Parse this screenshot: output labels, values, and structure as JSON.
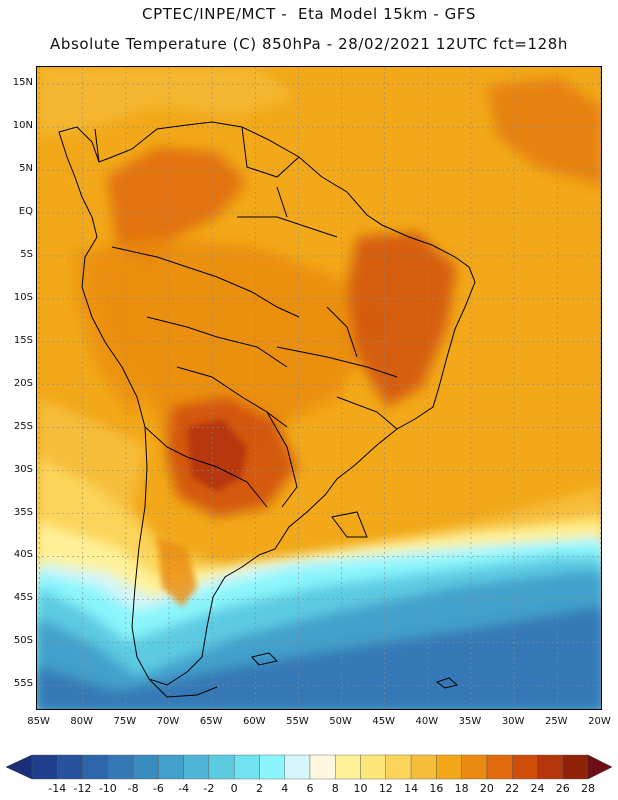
{
  "header": {
    "line1": "CPTEC/INPE/MCT -  Eta Model 15km - GFS",
    "line2": "Absolute Temperature (C) 850hPa - 28/02/2021 12UTC fct=128h"
  },
  "map": {
    "field": "Absolute Temperature (C) 850hPa",
    "lat_labels": [
      "15N",
      "10N",
      "5N",
      "EQ",
      "5S",
      "10S",
      "15S",
      "20S",
      "25S",
      "30S",
      "35S",
      "40S",
      "45S",
      "50S",
      "55S"
    ],
    "lon_labels": [
      "85W",
      "80W",
      "75W",
      "70W",
      "65W",
      "60W",
      "55W",
      "50W",
      "45W",
      "40W",
      "35W",
      "30W",
      "25W",
      "20W"
    ],
    "lat_range": [
      17,
      -58
    ],
    "lon_range": [
      -85.3,
      -19.7
    ]
  },
  "colorbar": {
    "labels": [
      "-14",
      "-12",
      "-10",
      "-8",
      "-6",
      "-4",
      "-2",
      "0",
      "2",
      "4",
      "6",
      "8",
      "10",
      "12",
      "14",
      "16",
      "18",
      "20",
      "22",
      "24",
      "26",
      "28"
    ],
    "colors": [
      "#1d3f8c",
      "#27529e",
      "#2e66ac",
      "#3478b6",
      "#3a8bc0",
      "#43a0ca",
      "#4fb6d6",
      "#5ccbe2",
      "#6fe3ef",
      "#8bf5fb",
      "#d5f6fb",
      "#fff8e0",
      "#fff19a",
      "#fde57a",
      "#fbd55a",
      "#f6bd3a",
      "#f2a818",
      "#ea8a10",
      "#e06a0c",
      "#cf4d0a",
      "#b5360a",
      "#8f2208"
    ],
    "low_arrow_color": "#1a2f7a",
    "high_arrow_color": "#6e0f18"
  }
}
